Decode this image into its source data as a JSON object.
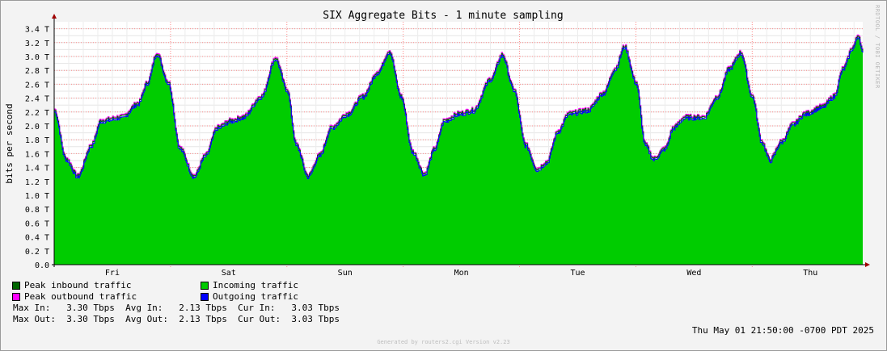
{
  "chart_data": {
    "type": "area",
    "title": "SIX Aggregate Bits - 1 minute sampling",
    "ylabel": "bits per second",
    "ylim": [
      0,
      3.5
    ],
    "yticks": [
      "0.0",
      "0.2 T",
      "0.4 T",
      "0.6 T",
      "0.8 T",
      "1.0 T",
      "1.2 T",
      "1.4 T",
      "1.6 T",
      "1.8 T",
      "2.0 T",
      "2.2 T",
      "2.4 T",
      "2.6 T",
      "2.8 T",
      "3.0 T",
      "3.2 T",
      "3.4 T"
    ],
    "xlim_days": [
      0,
      6.95
    ],
    "xticks": [
      {
        "label": "Fri",
        "day": 0.5
      },
      {
        "label": "Sat",
        "day": 1.5
      },
      {
        "label": "Sun",
        "day": 2.5
      },
      {
        "label": "Mon",
        "day": 3.5
      },
      {
        "label": "Tue",
        "day": 4.5
      },
      {
        "label": "Wed",
        "day": 5.5
      },
      {
        "label": "Thu",
        "day": 6.5
      }
    ],
    "series": [
      {
        "name": "Incoming traffic",
        "color": "#00cc00",
        "points": [
          [
            0.0,
            2.2
          ],
          [
            0.1,
            1.5
          ],
          [
            0.2,
            1.25
          ],
          [
            0.32,
            1.7
          ],
          [
            0.4,
            2.05
          ],
          [
            0.58,
            2.1
          ],
          [
            0.72,
            2.3
          ],
          [
            0.8,
            2.6
          ],
          [
            0.88,
            3.02
          ],
          [
            0.98,
            2.6
          ],
          [
            1.08,
            1.65
          ],
          [
            1.2,
            1.25
          ],
          [
            1.3,
            1.55
          ],
          [
            1.4,
            1.95
          ],
          [
            1.52,
            2.05
          ],
          [
            1.62,
            2.1
          ],
          [
            1.78,
            2.4
          ],
          [
            1.9,
            2.95
          ],
          [
            2.0,
            2.5
          ],
          [
            2.08,
            1.7
          ],
          [
            2.18,
            1.25
          ],
          [
            2.28,
            1.55
          ],
          [
            2.38,
            1.95
          ],
          [
            2.52,
            2.15
          ],
          [
            2.65,
            2.4
          ],
          [
            2.78,
            2.75
          ],
          [
            2.88,
            3.05
          ],
          [
            2.98,
            2.4
          ],
          [
            3.08,
            1.6
          ],
          [
            3.18,
            1.28
          ],
          [
            3.27,
            1.65
          ],
          [
            3.35,
            2.05
          ],
          [
            3.48,
            2.15
          ],
          [
            3.6,
            2.2
          ],
          [
            3.75,
            2.65
          ],
          [
            3.85,
            3.0
          ],
          [
            3.95,
            2.5
          ],
          [
            4.05,
            1.7
          ],
          [
            4.15,
            1.35
          ],
          [
            4.23,
            1.45
          ],
          [
            4.33,
            1.9
          ],
          [
            4.42,
            2.15
          ],
          [
            4.58,
            2.2
          ],
          [
            4.72,
            2.45
          ],
          [
            4.82,
            2.8
          ],
          [
            4.9,
            3.12
          ],
          [
            5.0,
            2.6
          ],
          [
            5.08,
            1.7
          ],
          [
            5.15,
            1.5
          ],
          [
            5.25,
            1.65
          ],
          [
            5.32,
            1.95
          ],
          [
            5.42,
            2.1
          ],
          [
            5.58,
            2.1
          ],
          [
            5.7,
            2.4
          ],
          [
            5.8,
            2.8
          ],
          [
            5.9,
            3.03
          ],
          [
            6.0,
            2.4
          ],
          [
            6.08,
            1.75
          ],
          [
            6.15,
            1.48
          ],
          [
            6.25,
            1.75
          ],
          [
            6.35,
            2.0
          ],
          [
            6.45,
            2.15
          ],
          [
            6.6,
            2.25
          ],
          [
            6.7,
            2.4
          ],
          [
            6.78,
            2.8
          ],
          [
            6.86,
            3.1
          ],
          [
            6.91,
            3.28
          ],
          [
            6.95,
            3.03
          ]
        ]
      },
      {
        "name": "Peak inbound traffic",
        "color": "#006600",
        "offset": 0.03
      },
      {
        "name": "Peak outbound traffic",
        "color": "#ff00ff",
        "offset": 0.045
      },
      {
        "name": "Outgoing traffic",
        "color": "#0000ff",
        "offset": 0.0
      }
    ]
  },
  "legend": [
    {
      "label": "Peak inbound traffic",
      "color": "#006600"
    },
    {
      "label": "Incoming traffic",
      "color": "#00cc00"
    },
    {
      "label": "Peak outbound traffic",
      "color": "#ff00ff"
    },
    {
      "label": "Outgoing traffic",
      "color": "#0000ff"
    }
  ],
  "stats": {
    "in_line": "Max In:   3.30 Tbps  Avg In:   2.13 Tbps  Cur In:   3.03 Tbps",
    "out_line": "Max Out:  3.30 Tbps  Avg Out:  2.13 Tbps  Cur Out:  3.03 Tbps"
  },
  "timestamp": "Thu May 01 21:50:00 -0700 PDT 2025",
  "generated": "Generated by routers2.cgi Version v2.23",
  "watermark": "RRDTOOL / TOBI OETIKER"
}
